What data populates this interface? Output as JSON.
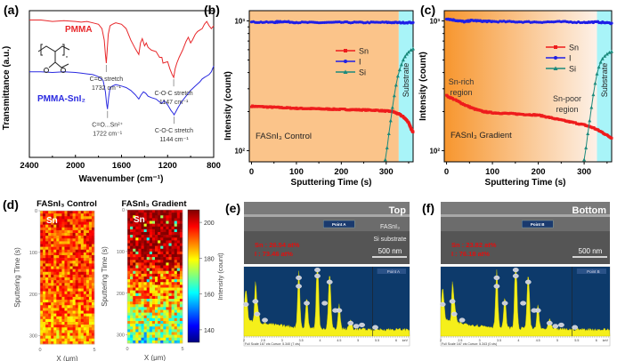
{
  "figure": {
    "panel_labels": [
      "(a)",
      "(b)",
      "(c)",
      "(d)",
      "(e)",
      "(f)"
    ]
  },
  "chart_data": [
    {
      "id": "a",
      "type": "line",
      "title": "",
      "xlabel": "Wavenumber (cm⁻¹)",
      "ylabel": "Transmittance (a.u.)",
      "xlim": [
        2400,
        800
      ],
      "xticks": [
        2400,
        2000,
        1600,
        1200,
        800
      ],
      "series": [
        {
          "name": "PMMA",
          "color": "#e8272a",
          "x": [
            2400,
            2300,
            2200,
            2100,
            2000,
            1950,
            1900,
            1850,
            1800,
            1770,
            1750,
            1740,
            1732,
            1725,
            1715,
            1700,
            1680,
            1650,
            1600,
            1560,
            1520,
            1480,
            1450,
            1435,
            1420,
            1400,
            1385,
            1370,
            1340,
            1300,
            1270,
            1250,
            1240,
            1200,
            1180,
            1160,
            1147,
            1135,
            1120,
            1100,
            1070,
            1040,
            1020,
            1000,
            985,
            960,
            940,
            900,
            880,
            860,
            840,
            820,
            800
          ],
          "y": [
            0.96,
            0.96,
            0.95,
            0.955,
            0.95,
            0.945,
            0.95,
            0.94,
            0.93,
            0.9,
            0.82,
            0.72,
            0.66,
            0.74,
            0.86,
            0.92,
            0.93,
            0.94,
            0.93,
            0.9,
            0.82,
            0.76,
            0.72,
            0.8,
            0.83,
            0.78,
            0.8,
            0.77,
            0.75,
            0.74,
            0.7,
            0.7,
            0.66,
            0.67,
            0.62,
            0.58,
            0.56,
            0.62,
            0.66,
            0.7,
            0.75,
            0.81,
            0.84,
            0.8,
            0.82,
            0.86,
            0.88,
            0.9,
            0.93,
            0.95,
            0.92,
            0.9,
            0.92
          ]
        },
        {
          "name": "PMMA-SnI₂",
          "color": "#2a2ae0",
          "x": [
            2400,
            2300,
            2200,
            2100,
            2000,
            1950,
            1900,
            1850,
            1800,
            1760,
            1740,
            1730,
            1722,
            1712,
            1700,
            1680,
            1650,
            1600,
            1560,
            1520,
            1480,
            1450,
            1430,
            1410,
            1390,
            1370,
            1340,
            1300,
            1270,
            1250,
            1230,
            1200,
            1170,
            1150,
            1144,
            1130,
            1110,
            1080,
            1040,
            1000,
            960,
            920,
            900,
            880,
            860,
            840,
            820,
            800
          ],
          "y": [
            0.6,
            0.6,
            0.595,
            0.6,
            0.595,
            0.59,
            0.585,
            0.58,
            0.565,
            0.54,
            0.46,
            0.38,
            0.34,
            0.42,
            0.49,
            0.5,
            0.51,
            0.5,
            0.49,
            0.47,
            0.44,
            0.41,
            0.44,
            0.46,
            0.45,
            0.43,
            0.42,
            0.41,
            0.39,
            0.38,
            0.4,
            0.37,
            0.33,
            0.31,
            0.3,
            0.32,
            0.35,
            0.39,
            0.43,
            0.47,
            0.5,
            0.53,
            0.55,
            0.56,
            0.57,
            0.58,
            0.6,
            0.64
          ]
        }
      ],
      "annotations": [
        {
          "text": "PMMA",
          "color": "#e8272a"
        },
        {
          "text": "PMMA-SnI₂",
          "color": "#2a2ae0"
        },
        {
          "text": "C=O stretch",
          "sub": "1732 cm⁻¹",
          "x": 1732
        },
        {
          "text": "C-O-C stretch",
          "sub": "1147 cm⁻¹",
          "x": 1147
        },
        {
          "text": "C=O...Sn²⁺",
          "sub": "1722 cm⁻¹",
          "x": 1722
        },
        {
          "text": "C-O-C stretch",
          "sub": "1144 cm⁻¹",
          "x": 1144
        }
      ]
    },
    {
      "id": "b",
      "type": "line",
      "title": "",
      "xlabel": "Sputtering Time (s)",
      "ylabel": "Intensity (count)",
      "yscale": "log",
      "xlim": [
        -5,
        360
      ],
      "ylim": [
        82,
        1200
      ],
      "xticks": [
        0,
        100,
        200,
        300
      ],
      "yticks": [
        {
          "value": 100,
          "label": "10²"
        },
        {
          "value": 1000,
          "label": "10³"
        }
      ],
      "legend": [
        "Sn",
        "I",
        "Si"
      ],
      "legend_position": "center-right",
      "regions": [
        {
          "name": "film",
          "from": -5,
          "to": 328,
          "color": "#fbc48a"
        },
        {
          "name": "Substrate",
          "from": 328,
          "to": 360,
          "color": "#a8f4f8",
          "label": "Substrate"
        }
      ],
      "annotation": "FASnI₃ Control",
      "series": [
        {
          "name": "Sn",
          "color": "#ee1c1c",
          "marker": "square",
          "x": [
            0,
            25,
            50,
            75,
            100,
            125,
            150,
            175,
            200,
            225,
            250,
            275,
            300,
            315,
            330,
            340,
            350,
            355,
            360
          ],
          "y": [
            220,
            218,
            216,
            214,
            212,
            211,
            210,
            209,
            208,
            207,
            206,
            205,
            202,
            200,
            190,
            180,
            165,
            148,
            140
          ]
        },
        {
          "name": "I",
          "color": "#1f1fe6",
          "marker": "circle",
          "x": [
            0,
            50,
            65,
            100,
            150,
            200,
            250,
            300,
            330,
            360
          ],
          "y": [
            980,
            975,
            990,
            975,
            970,
            975,
            972,
            975,
            970,
            972
          ]
        },
        {
          "name": "Si",
          "color": "#1a8a7c",
          "marker": "triangle",
          "x": [
            298,
            302,
            306,
            310,
            314,
            318,
            322,
            326,
            330,
            334,
            338,
            342,
            346,
            350,
            355,
            360
          ],
          "y": [
            85,
            105,
            135,
            170,
            215,
            265,
            320,
            375,
            420,
            460,
            500,
            530,
            555,
            575,
            595,
            610
          ]
        }
      ]
    },
    {
      "id": "c",
      "type": "line",
      "title": "",
      "xlabel": "Sputtering Time (s)",
      "ylabel": "Intensity (count)",
      "yscale": "log",
      "xlim": [
        -5,
        360
      ],
      "ylim": [
        82,
        1200
      ],
      "xticks": [
        0,
        100,
        200,
        300
      ],
      "yticks": [
        {
          "value": 100,
          "label": "10²"
        },
        {
          "value": 1000,
          "label": "10³"
        }
      ],
      "legend": [
        "Sn",
        "I",
        "Si"
      ],
      "legend_position": "center-right",
      "regions": [
        {
          "name": "film-gradient",
          "from": -5,
          "to": 328,
          "color_start": "#f7962e",
          "color_end": "#fdf1e8"
        },
        {
          "name": "Substrate",
          "from": 328,
          "to": 360,
          "color": "#a8f4f8",
          "label": "Substrate"
        }
      ],
      "annotations": [
        "Sn-rich region",
        "Sn-poor region",
        "FASnI₃ Gradient"
      ],
      "series": [
        {
          "name": "Sn",
          "color": "#ee1c1c",
          "marker": "square",
          "x": [
            0,
            20,
            40,
            60,
            80,
            100,
            125,
            150,
            175,
            200,
            225,
            250,
            275,
            300,
            320,
            340,
            360
          ],
          "y": [
            265,
            245,
            225,
            210,
            200,
            196,
            194,
            192,
            190,
            188,
            180,
            172,
            165,
            158,
            150,
            138,
            125
          ]
        },
        {
          "name": "I",
          "color": "#1f1fe6",
          "marker": "circle",
          "x": [
            0,
            20,
            40,
            55,
            80,
            100,
            150,
            200,
            250,
            300,
            330,
            360
          ],
          "y": [
            1040,
            1010,
            985,
            1010,
            995,
            990,
            985,
            980,
            985,
            975,
            980,
            960
          ]
        },
        {
          "name": "Si",
          "color": "#1a8a7c",
          "marker": "triangle",
          "x": [
            300,
            304,
            308,
            312,
            316,
            320,
            324,
            328,
            332,
            336,
            340,
            345,
            350,
            355,
            360
          ],
          "y": [
            85,
            105,
            135,
            170,
            215,
            270,
            330,
            390,
            440,
            480,
            510,
            535,
            555,
            570,
            580
          ]
        }
      ]
    },
    {
      "id": "d",
      "type": "heatmap",
      "maps": [
        {
          "title": "FASnI₃ Control",
          "element": "Sn",
          "profile": "uniform"
        },
        {
          "title": "FASnI₃ Gradient",
          "element": "Sn",
          "profile": "gradient"
        }
      ],
      "xlabel": "X (μm)",
      "ylabel": "Sputtering Time (s)",
      "xticks": [
        0,
        5
      ],
      "yticks": [
        0,
        100,
        200,
        300
      ],
      "colorbar": {
        "label": "Intensity (count)",
        "range": [
          133,
          207
        ],
        "ticks": [
          140,
          160,
          180,
          200
        ],
        "colormap": "jet"
      }
    },
    {
      "id": "e",
      "type": "bar",
      "sem_label": "Top",
      "layers": [
        "FASnI₃",
        "Si substrate"
      ],
      "scale_bar": "500 nm",
      "point": "Point A",
      "composition": [
        "Sn : 26.54  at%",
        "I : 73.46  at%"
      ],
      "eds_axis_ticks": [
        "2",
        "2.5",
        "3",
        "3.5",
        "4",
        "4.5",
        "5",
        "5.5",
        "6"
      ],
      "eds_unit": "keV",
      "eds_footer": "Full Scale 167 cts Cursor: 5.340  (7 cts)"
    },
    {
      "id": "f",
      "type": "bar",
      "sem_label": "Bottom",
      "scale_bar": "500 nm",
      "point": "Point B",
      "composition": [
        "Sn : 23.82  at%",
        "I : 76.18  at%"
      ],
      "eds_axis_ticks": [
        "2",
        "2.5",
        "3",
        "3.5",
        "4",
        "4.5",
        "5",
        "5.5",
        "6"
      ],
      "eds_unit": "keV",
      "eds_footer": "Full Scale 167 cts Cursor: 5.343  (0 cts)"
    }
  ]
}
